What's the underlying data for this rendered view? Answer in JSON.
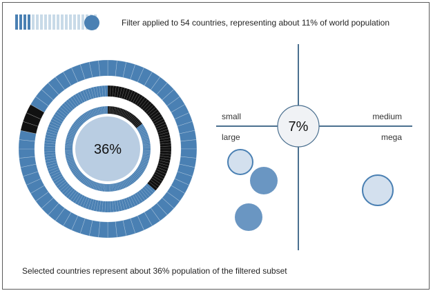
{
  "header": {
    "filter_text": "Filter applied to 54 countries, representing about 11% of world population"
  },
  "footer": {
    "text": "Selected countries represent about 36% population of the filtered subset"
  },
  "filter_indicator": {
    "segments_total": 20,
    "segments_active": 4,
    "active_color": "#4a80b3",
    "inactive_color": "#c8dae8"
  },
  "colors": {
    "ring": "#4a80b3",
    "ring_highlight": "#111111",
    "center_fill": "#b9cde2",
    "bubble_light": "#d3e0ee",
    "bubble_mid": "#6a96c2",
    "axis": "#4a6f8f",
    "center_badge_fill": "#f0f2f5"
  },
  "chart_data": {
    "type": "donut-and-quadrant",
    "donut": {
      "center_label": "36%",
      "center_value": 36,
      "rings": [
        {
          "name": "outer",
          "highlight_start_pct": 77,
          "highlight_end_pct": 82
        },
        {
          "name": "middle",
          "highlight_start_pct": 0,
          "highlight_end_pct": 36
        },
        {
          "name": "inner",
          "highlight_start_pct": 0,
          "highlight_end_pct": 15
        }
      ]
    },
    "quadrant": {
      "center_label": "7%",
      "center_value": 7,
      "labels": {
        "top_left": "small",
        "top_right": "medium",
        "bottom_left": "large",
        "bottom_right": "mega"
      },
      "bubbles": [
        {
          "quadrant": "bottom_left",
          "shade": "light",
          "size": 1.0
        },
        {
          "quadrant": "bottom_left",
          "shade": "mid",
          "size": 1.1
        },
        {
          "quadrant": "bottom_left",
          "shade": "mid",
          "size": 1.1
        },
        {
          "quadrant": "bottom_right",
          "shade": "light",
          "size": 1.2
        }
      ]
    }
  }
}
